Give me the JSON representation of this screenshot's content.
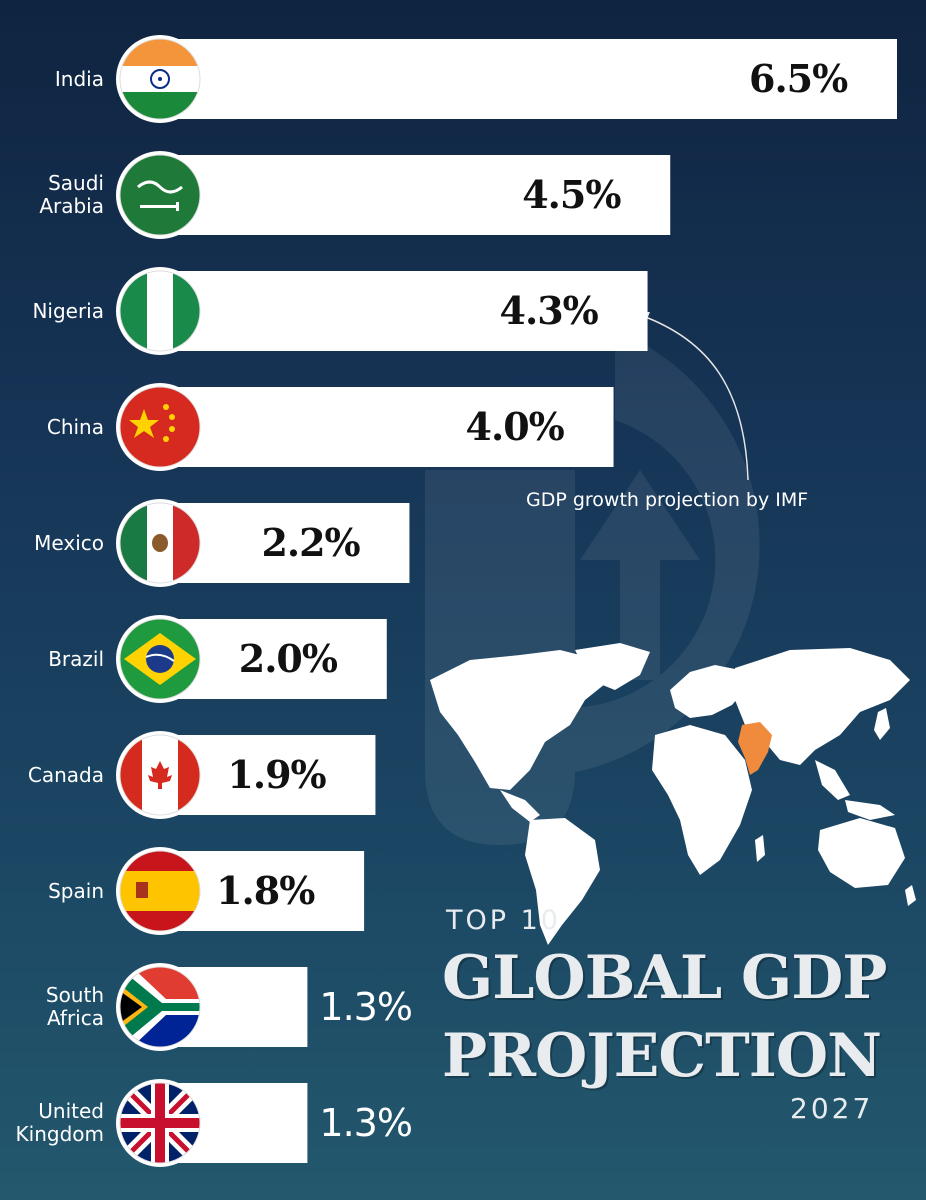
{
  "title": {
    "prefix": "TOP 10",
    "line1": "GLOBAL GDP",
    "line2": "PROJECTION",
    "year": "2027"
  },
  "annotation": "GDP growth projection by IMF",
  "chart_data": {
    "type": "bar",
    "orientation": "horizontal",
    "categories": [
      "India",
      "Saudi Arabia",
      "Nigeria",
      "China",
      "Mexico",
      "Brazil",
      "Canada",
      "Spain",
      "South Africa",
      "United Kingdom"
    ],
    "category_labels": [
      "India",
      "Saudi\nArabia",
      "Nigeria",
      "China",
      "Mexico",
      "Brazil",
      "Canada",
      "Spain",
      "South\nAfrica",
      "United\nKingdom"
    ],
    "values": [
      6.5,
      4.5,
      4.3,
      4.0,
      2.2,
      2.0,
      1.9,
      1.8,
      1.3,
      1.3
    ],
    "value_labels": [
      "6.5%",
      "4.5%",
      "4.3%",
      "4.0%",
      "2.2%",
      "2.0%",
      "1.9%",
      "1.8%",
      "1.3%",
      "1.3%"
    ],
    "flags": [
      "india-flag-icon",
      "saudi-arabia-flag-icon",
      "nigeria-flag-icon",
      "china-flag-icon",
      "mexico-flag-icon",
      "brazil-flag-icon",
      "canada-flag-icon",
      "spain-flag-icon",
      "south-africa-flag-icon",
      "united-kingdom-flag-icon"
    ],
    "bar_color": "#ffffff",
    "grid": false,
    "legend": "none"
  },
  "colors": {
    "background_top": "#0f2440",
    "background_bottom": "#23586d",
    "highlight_country_on_map": "#f08a3c"
  },
  "map": {
    "icon": "world-map-icon",
    "highlighted_country": "India"
  }
}
